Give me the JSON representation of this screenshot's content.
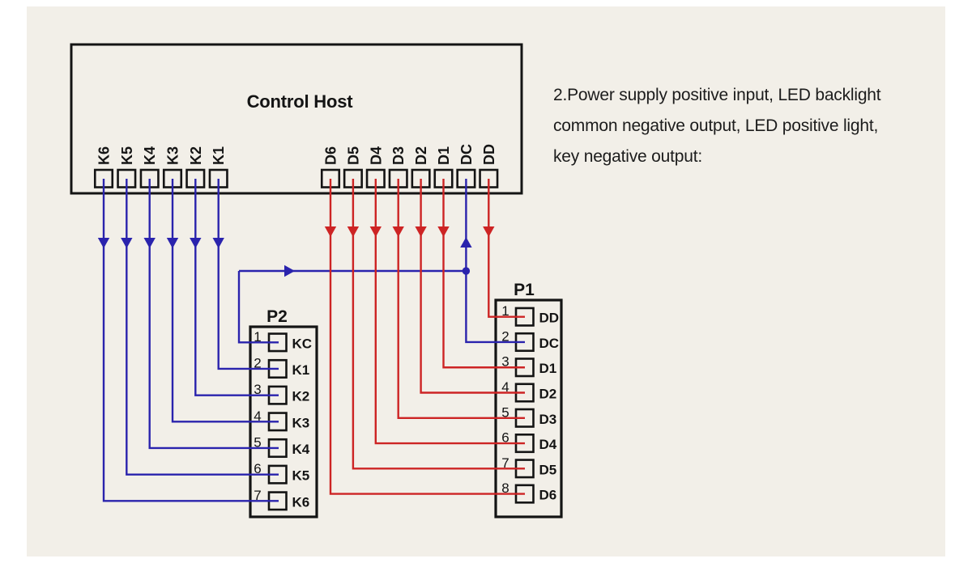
{
  "colors": {
    "page": "#ffffff",
    "canvas": "#f2efe8",
    "line": "#141414",
    "wire_blue": "#2a23ad",
    "wire_red": "#cd2424",
    "connector_title_blue": "#2a23ad",
    "text": "#1c1c1c"
  },
  "host": {
    "title": "Control Host",
    "left_pins": [
      "K6",
      "K5",
      "K4",
      "K3",
      "K2",
      "K1"
    ],
    "right_pins": [
      "D6",
      "D5",
      "D4",
      "D3",
      "D2",
      "D1",
      "DC",
      "DD"
    ]
  },
  "connectors": {
    "p2": {
      "label": "P2",
      "pins": [
        {
          "number": "1",
          "label": "KC"
        },
        {
          "number": "2",
          "label": "K1"
        },
        {
          "number": "3",
          "label": "K2"
        },
        {
          "number": "4",
          "label": "K3"
        },
        {
          "number": "5",
          "label": "K4"
        },
        {
          "number": "6",
          "label": "K5"
        },
        {
          "number": "7",
          "label": "K6"
        }
      ]
    },
    "p1": {
      "label": "P1",
      "pins": [
        {
          "number": "1",
          "label": "DD"
        },
        {
          "number": "2",
          "label": "DC"
        },
        {
          "number": "3",
          "label": "D1"
        },
        {
          "number": "4",
          "label": "D2"
        },
        {
          "number": "5",
          "label": "D3"
        },
        {
          "number": "6",
          "label": "D4"
        },
        {
          "number": "7",
          "label": "D5"
        },
        {
          "number": "8",
          "label": "D6"
        }
      ]
    }
  },
  "side_note": {
    "lines": [
      "2.Power supply positive input, LED backlight",
      "common negative output, LED positive light,",
      "key negative output:"
    ]
  }
}
